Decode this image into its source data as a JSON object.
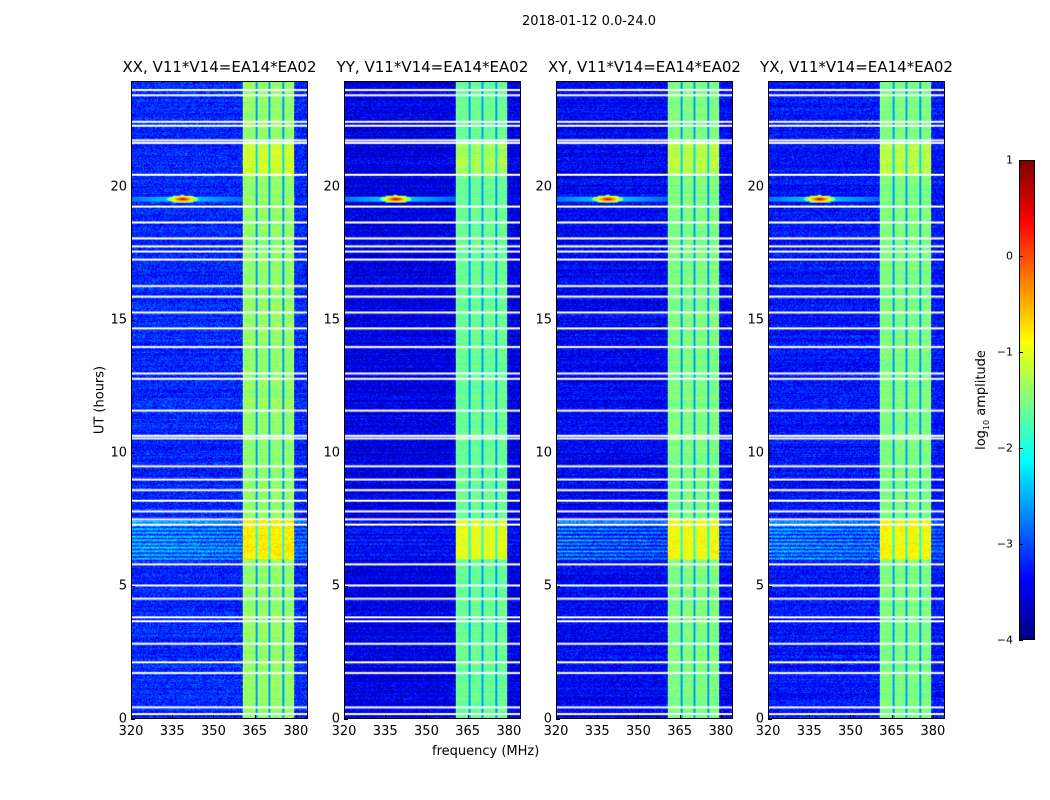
{
  "chart_data": {
    "type": "heatmap",
    "title": "2018-01-12 0.0-24.0",
    "xlabel": "frequency (MHz)",
    "ylabel": "UT (hours)",
    "xlim": [
      320,
      384.4
    ],
    "ylim": [
      0,
      24
    ],
    "xticks": [
      "320",
      "335",
      "350",
      "365",
      "380"
    ],
    "xtick_values": [
      320,
      335,
      350,
      365,
      380
    ],
    "yticks": [
      "0",
      "5",
      "10",
      "15",
      "20"
    ],
    "ytick_values": [
      0,
      5,
      10,
      15,
      20
    ],
    "panels": [
      {
        "title": "XX, V11*V14=EA14*EA02",
        "background": -3.2,
        "band_level": -1.4,
        "burst_level": -1.0
      },
      {
        "title": "YY, V11*V14=EA14*EA02",
        "background": -3.5,
        "band_level": -1.6,
        "burst_level": -1.6
      },
      {
        "title": "XY, V11*V14=EA14*EA02",
        "background": -3.4,
        "band_level": -1.5,
        "burst_level": -1.7
      },
      {
        "title": "YX, V11*V14=EA14*EA02",
        "background": -3.3,
        "band_level": -1.5,
        "burst_level": -1.4
      }
    ],
    "features": {
      "rfi_band_mhz": [
        360.7,
        379.6
      ],
      "subband_gaps_mhz": [
        365.6,
        370.3,
        375.4
      ],
      "bright_source": {
        "freq_mhz": 338.5,
        "ut_hours": 19.6,
        "log10_amp": 0.6
      },
      "enhanced_ut_hours": [
        6.0,
        7.5
      ],
      "flagged_ut_hours": [
        0.15,
        0.4,
        1.7,
        2.1,
        2.8,
        3.65,
        3.8,
        4.5,
        5.0,
        5.8,
        7.3,
        7.5,
        7.8,
        8.2,
        8.6,
        9.0,
        9.5,
        10.55,
        10.65,
        11.6,
        12.8,
        13.0,
        14.0,
        14.7,
        15.3,
        15.9,
        16.3,
        17.3,
        17.6,
        17.8,
        18.1,
        18.7,
        19.3,
        20.5,
        21.7,
        21.8,
        22.35,
        22.5,
        23.5,
        23.7
      ]
    },
    "colorbar": {
      "label": "log10 amplitude",
      "label_main": "log",
      "label_sub": "10",
      "label_rest": " amplitude",
      "colormap": "jet",
      "range": [
        -4,
        1
      ],
      "ticks": [
        "1",
        "0",
        "−1",
        "−2",
        "−3",
        "−4"
      ],
      "tick_values": [
        1,
        0,
        -1,
        -2,
        -3,
        -4
      ]
    }
  }
}
